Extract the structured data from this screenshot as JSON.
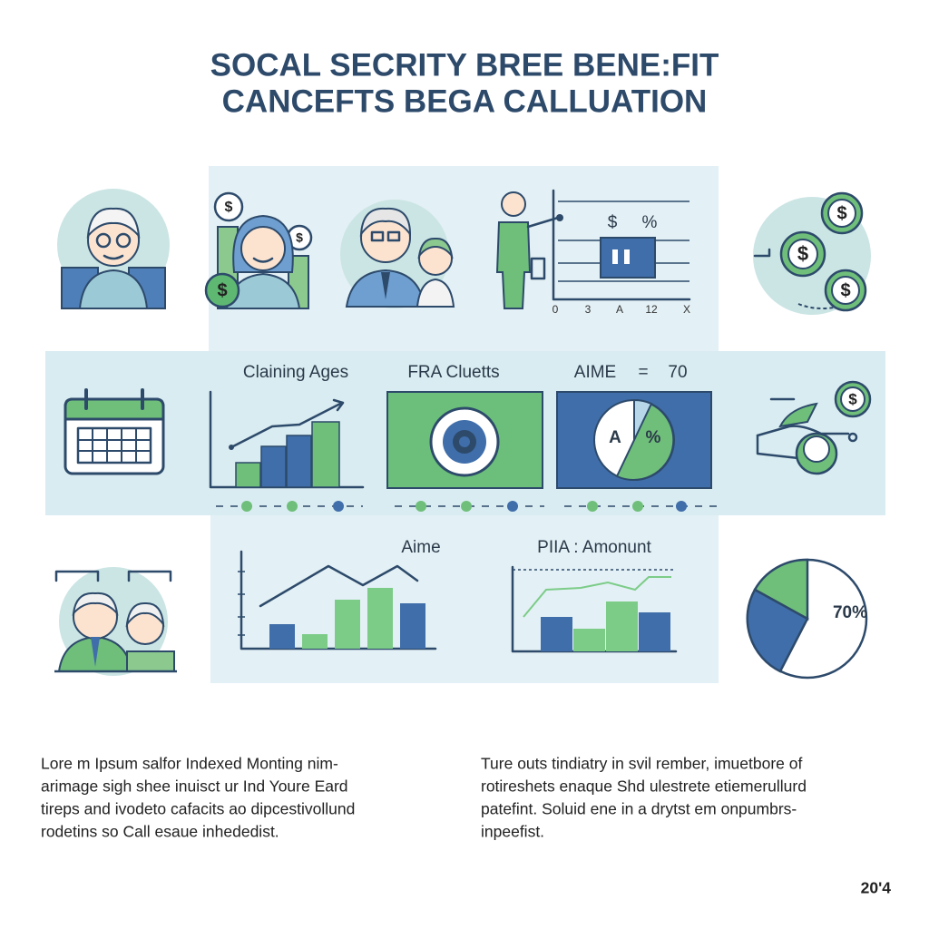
{
  "header": {
    "title_lines": [
      "SOCAL SECRITY BREE BENE:FIT",
      "CANCEFTS BEGA CALLUATION"
    ]
  },
  "top_chart": {
    "labels": [
      "$",
      "%"
    ],
    "axis_labels": [
      "0",
      "3",
      "A",
      "12",
      "X"
    ]
  },
  "middle": {
    "claiming_ages": "Claining Ages",
    "fra": "FRA Cluetts",
    "aime": "AIME",
    "equals": "=",
    "aime_value": "70",
    "pie_labels": [
      "A",
      "%"
    ]
  },
  "lower": {
    "aime": "Aime",
    "pia": "PIIA : Amonunt",
    "pie_label": "70%"
  },
  "paragraphs": [
    [
      "Lore m Ipsum salfor Indexed Monting nim-",
      "arimage sigh shee inuisct ur Ind Youre Eard",
      "tireps and ivodeto cafacits ao dipcestivollund",
      "rodetins so Call esaue inhededist."
    ],
    [
      "Ture outs tindiatry in svil rember, imuetbore of",
      "rotireshets enaque Shd ulestrete etiemerullurd",
      "patefint. Soluid ene in a drytst em onpumbrs-",
      "inpeefist."
    ]
  ],
  "footer": "20'4"
}
